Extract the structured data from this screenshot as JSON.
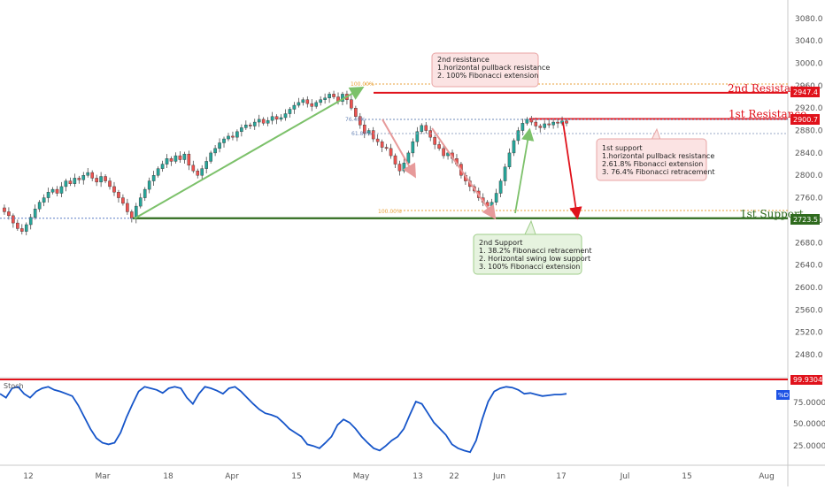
{
  "chart_data": [
    {
      "type": "line",
      "panel": "price",
      "y_ticks": [
        3080,
        3040,
        3000,
        2960,
        2920,
        2880,
        2840,
        2800,
        2760,
        2720,
        2680,
        2640,
        2600,
        2560,
        2520,
        2480
      ],
      "ylim": [
        2450,
        3105
      ],
      "x_ticks": [
        "12",
        "Mar",
        "18",
        "Apr",
        "15",
        "May",
        "13",
        "22",
        "Jun",
        "17",
        "Jul",
        "15",
        "Aug"
      ],
      "series": [
        {
          "values": [
            2742,
            2735,
            2728,
            2715,
            2705,
            2700,
            2712,
            2725,
            2740,
            2752,
            2760,
            2770,
            2775,
            2768,
            2780,
            2790,
            2785,
            2795,
            2792,
            2800,
            2805,
            2795,
            2788,
            2798,
            2790,
            2780,
            2770,
            2760,
            2750,
            2735,
            2723,
            2745,
            2760,
            2775,
            2790,
            2800,
            2812,
            2820,
            2830,
            2825,
            2835,
            2828,
            2838,
            2818,
            2808,
            2800,
            2812,
            2825,
            2840,
            2848,
            2858,
            2865,
            2870,
            2868,
            2878,
            2885,
            2890,
            2888,
            2895,
            2900,
            2893,
            2898,
            2905,
            2900,
            2903,
            2910,
            2918,
            2925,
            2930,
            2935,
            2928,
            2923,
            2930,
            2935,
            2938,
            2945,
            2940,
            2932,
            2945,
            2935,
            2920,
            2905,
            2890,
            2875,
            2880,
            2865,
            2860,
            2850,
            2848,
            2835,
            2820,
            2808,
            2822,
            2840,
            2860,
            2878,
            2889,
            2880,
            2868,
            2855,
            2848,
            2835,
            2840,
            2830,
            2820,
            2800,
            2790,
            2780,
            2772,
            2760,
            2752,
            2745,
            2752,
            2768,
            2790,
            2815,
            2840,
            2862,
            2880,
            2893,
            2900,
            2895,
            2888,
            2885,
            2892,
            2890,
            2895,
            2893,
            2897,
            2893
          ]
        },
        {
          "values": [
            2947.4,
            2900.7,
            2723.5
          ]
        }
      ]
    },
    {
      "type": "line",
      "panel": "stoch",
      "series_label": "%D",
      "y_ticks": [
        75,
        50,
        25
      ],
      "ylim": [
        0,
        100
      ],
      "series": [
        {
          "values": [
            85,
            80,
            92,
            94,
            85,
            80,
            88,
            92,
            94,
            90,
            88,
            85,
            82,
            70,
            55,
            40,
            28,
            22,
            20,
            22,
            35,
            55,
            72,
            88,
            94,
            92,
            90,
            86,
            92,
            94,
            92,
            80,
            72,
            85,
            94,
            92,
            89,
            85,
            92,
            94,
            88,
            80,
            72,
            65,
            60,
            58,
            55,
            48,
            40,
            35,
            30,
            20,
            18,
            15,
            22,
            30,
            45,
            52,
            48,
            40,
            30,
            22,
            15,
            12,
            18,
            25,
            30,
            40,
            58,
            75,
            72,
            60,
            48,
            40,
            32,
            20,
            15,
            12,
            10,
            25,
            52,
            75,
            88,
            92,
            94,
            93,
            90,
            85,
            86,
            84,
            82,
            83,
            84,
            84,
            85
          ]
        }
      ]
    }
  ],
  "axis": {
    "y_labels": [
      "3080.0",
      "3040.0",
      "3000.0",
      "2960.0",
      "2920.0",
      "2880.0",
      "2840.0",
      "2800.0",
      "2760.0",
      "2720.0",
      "2680.0",
      "2640.0",
      "2600.0",
      "2560.0",
      "2520.0",
      "2480.0"
    ],
    "x_labels": [
      "12",
      "Mar",
      "18",
      "Apr",
      "15",
      "May",
      "13",
      "22",
      "Jun",
      "17",
      "Jul",
      "15",
      "Aug"
    ]
  },
  "levels": {
    "second_resistance": {
      "label": "2nd Resistance",
      "value": "2947.4",
      "color": "#e0121b"
    },
    "first_resistance": {
      "label": "1st Resistance",
      "value": "2900.7",
      "color": "#e0121b"
    },
    "first_support": {
      "label": "1st Support",
      "value": "2723.5",
      "color": "#2f6b1e"
    }
  },
  "fib_labels": {
    "top_100": "100.00%",
    "r_764": "76.40%",
    "r_618": "61.80%",
    "bottom_100": "100.00%"
  },
  "notes": {
    "resistance": [
      "2nd resistance",
      "1.horizontal pullback resistance",
      "2. 100% Fibonacci extension"
    ],
    "support1": [
      "1st support",
      "1.horizontal pullback resistance",
      "2.61.8% Fibonacci extension",
      "3. 76.4% Fibonacci retracement"
    ],
    "support2": [
      "2nd Support",
      "1. 38.2% Fibonacci retracement",
      "2. Horizontal swing low support",
      "3. 100% Fibonacci extension"
    ]
  },
  "stoch": {
    "title": "Stoch",
    "y_labels": [
      "75.0000",
      "50.0000",
      "25.0000"
    ],
    "top_value": "99.9304",
    "series_label": "%D"
  },
  "colors": {
    "bull": "#26a69a",
    "bear": "#ef5350",
    "resistance": "#e0121b",
    "support": "#2f6b1e",
    "stoch_line": "#1655c9",
    "fib": "#e8a23b"
  }
}
